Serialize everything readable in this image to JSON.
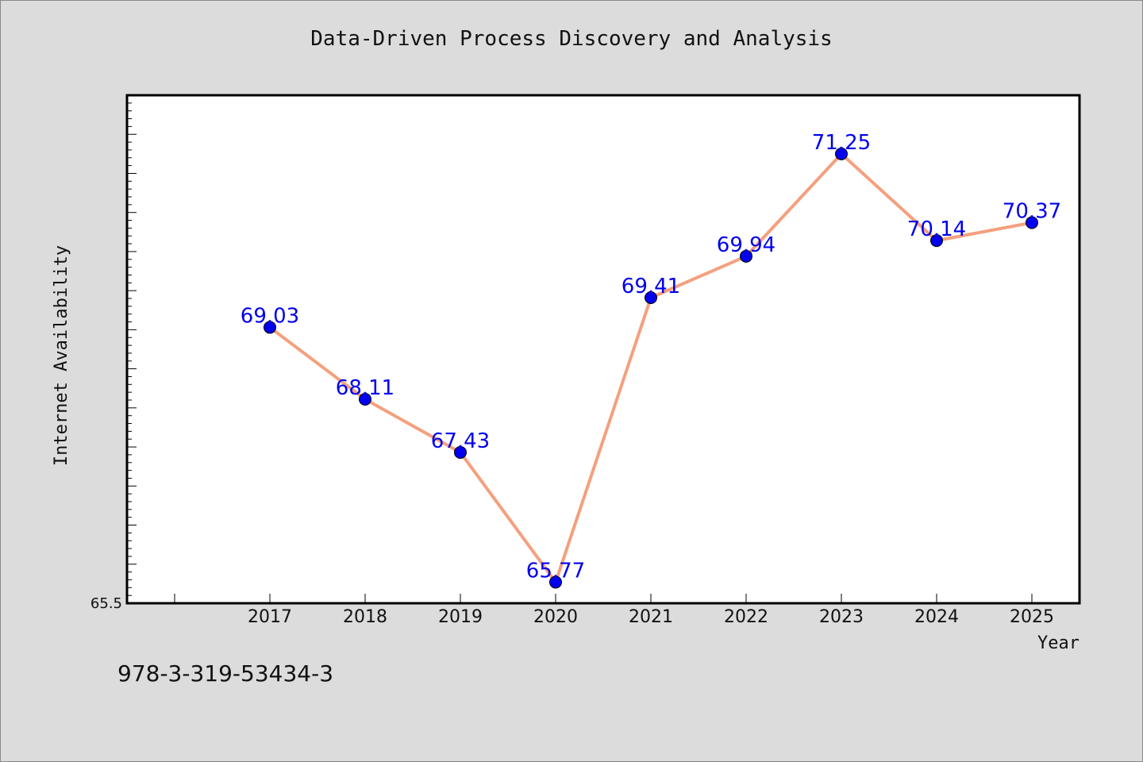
{
  "chart_data": {
    "type": "line",
    "title": "Data-Driven Process Discovery and Analysis",
    "xlabel": "Year",
    "ylabel": "Internet Availability",
    "x": [
      "2017",
      "2018",
      "2019",
      "2020",
      "2021",
      "2022",
      "2023",
      "2024",
      "2025"
    ],
    "series": [
      {
        "values": [
          69.03,
          68.11,
          67.43,
          65.77,
          69.41,
          69.94,
          71.25,
          70.14,
          70.37
        ],
        "labels": [
          "69.03",
          "68.11",
          "67.43",
          "65.77",
          "69.41",
          "69.94",
          "71.25",
          "70.14",
          "70.37"
        ]
      }
    ],
    "ylim": [
      65.5,
      72.0
    ],
    "y_tick_labels": [
      "65.5"
    ],
    "grid": false,
    "legend": "none",
    "colors": {
      "line": "#f4a07e",
      "marker": "#0000ee",
      "data_label": "#0000ee",
      "plot_background": "#ffffff",
      "figure_background": "#dcdcdc"
    }
  },
  "footer": {
    "isbn": "978-3-319-53434-3"
  }
}
